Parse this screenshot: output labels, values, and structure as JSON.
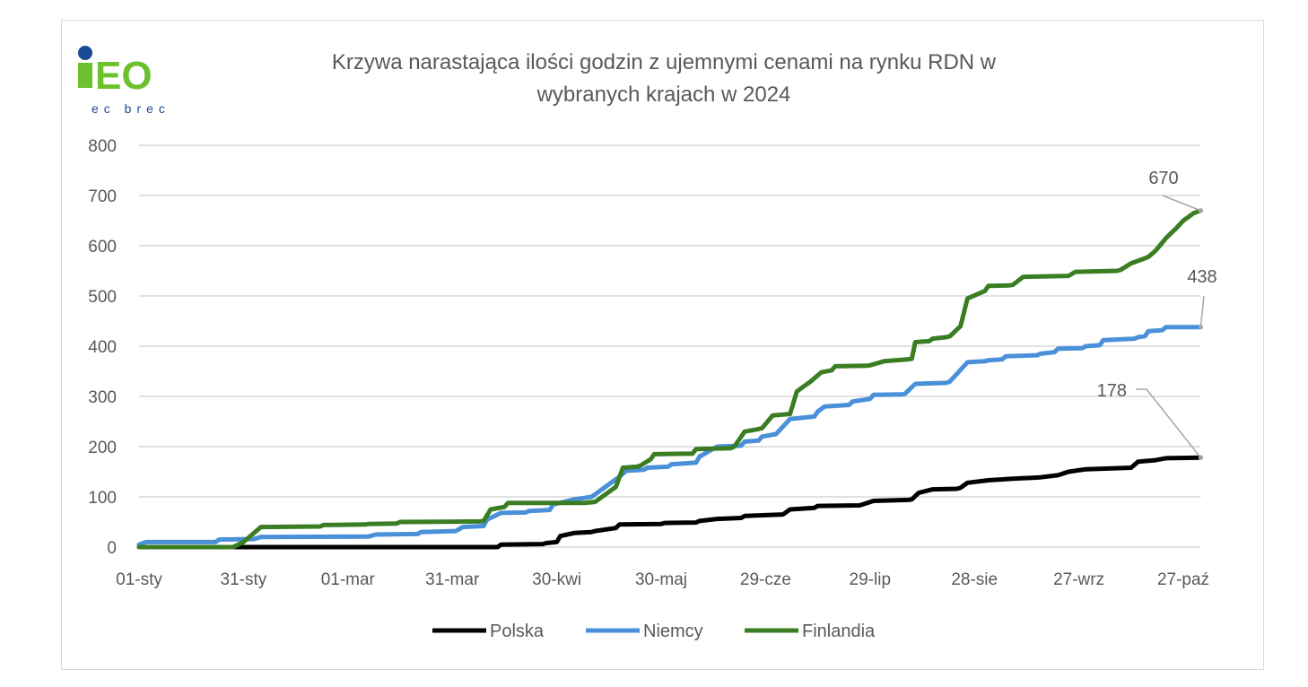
{
  "logo": {
    "main": "iEO",
    "sub": "ec brec"
  },
  "chart_data": {
    "type": "line",
    "title_lines": [
      "Krzywa narastająca ilości godzin z ujemnymi cenami na rynku RDN w",
      "wybranych krajach w 2024"
    ],
    "xlabel": "",
    "ylabel": "",
    "x_unit": "day of year 2024 (0 = 01-sty)",
    "xlim": [
      0,
      305
    ],
    "ylim": [
      0,
      800
    ],
    "y_ticks": [
      0,
      100,
      200,
      300,
      400,
      500,
      600,
      700,
      800
    ],
    "x_ticks": [
      {
        "day": 0,
        "label": "01-sty"
      },
      {
        "day": 30,
        "label": "31-sty"
      },
      {
        "day": 60,
        "label": "01-mar"
      },
      {
        "day": 90,
        "label": "31-mar"
      },
      {
        "day": 120,
        "label": "30-kwi"
      },
      {
        "day": 150,
        "label": "30-maj"
      },
      {
        "day": 180,
        "label": "29-cze"
      },
      {
        "day": 210,
        "label": "29-lip"
      },
      {
        "day": 240,
        "label": "28-sie"
      },
      {
        "day": 270,
        "label": "27-wrz"
      },
      {
        "day": 300,
        "label": "27-paź"
      }
    ],
    "grid": "horizontal",
    "legend_position": "bottom",
    "series": [
      {
        "name": "Polska",
        "color": "#000000",
        "end_label": "178",
        "points": [
          [
            0,
            0
          ],
          [
            103,
            0
          ],
          [
            104,
            5
          ],
          [
            116,
            6
          ],
          [
            117,
            8
          ],
          [
            120,
            10
          ],
          [
            121,
            22
          ],
          [
            125,
            28
          ],
          [
            130,
            30
          ],
          [
            131,
            32
          ],
          [
            137,
            38
          ],
          [
            138,
            45
          ],
          [
            150,
            46
          ],
          [
            151,
            48
          ],
          [
            160,
            49
          ],
          [
            161,
            52
          ],
          [
            166,
            56
          ],
          [
            173,
            58
          ],
          [
            174,
            62
          ],
          [
            185,
            65
          ],
          [
            187,
            75
          ],
          [
            194,
            78
          ],
          [
            195,
            82
          ],
          [
            207,
            83
          ],
          [
            211,
            92
          ],
          [
            221,
            94
          ],
          [
            222,
            95
          ],
          [
            224,
            108
          ],
          [
            228,
            115
          ],
          [
            235,
            116
          ],
          [
            236,
            118
          ],
          [
            238,
            128
          ],
          [
            244,
            133
          ],
          [
            251,
            136
          ],
          [
            259,
            139
          ],
          [
            264,
            143
          ],
          [
            267,
            150
          ],
          [
            272,
            155
          ],
          [
            285,
            158
          ],
          [
            287,
            170
          ],
          [
            292,
            173
          ],
          [
            295,
            177
          ],
          [
            305,
            178
          ]
        ]
      },
      {
        "name": "Niemcy",
        "color": "#4a90d9",
        "end_label": "438",
        "points": [
          [
            0,
            5
          ],
          [
            2,
            10
          ],
          [
            22,
            10
          ],
          [
            23,
            15
          ],
          [
            33,
            16
          ],
          [
            35,
            20
          ],
          [
            66,
            21
          ],
          [
            68,
            25
          ],
          [
            80,
            26
          ],
          [
            81,
            30
          ],
          [
            91,
            32
          ],
          [
            93,
            40
          ],
          [
            99,
            42
          ],
          [
            100,
            55
          ],
          [
            104,
            68
          ],
          [
            111,
            69
          ],
          [
            112,
            72
          ],
          [
            118,
            74
          ],
          [
            119,
            85
          ],
          [
            125,
            95
          ],
          [
            130,
            100
          ],
          [
            134,
            120
          ],
          [
            138,
            140
          ],
          [
            140,
            152
          ],
          [
            145,
            154
          ],
          [
            146,
            158
          ],
          [
            152,
            160
          ],
          [
            153,
            165
          ],
          [
            160,
            168
          ],
          [
            161,
            180
          ],
          [
            166,
            200
          ],
          [
            173,
            202
          ],
          [
            174,
            210
          ],
          [
            178,
            212
          ],
          [
            179,
            220
          ],
          [
            183,
            225
          ],
          [
            187,
            255
          ],
          [
            194,
            260
          ],
          [
            195,
            270
          ],
          [
            197,
            280
          ],
          [
            204,
            283
          ],
          [
            205,
            290
          ],
          [
            210,
            295
          ],
          [
            211,
            303
          ],
          [
            219,
            304
          ],
          [
            220,
            305
          ],
          [
            223,
            325
          ],
          [
            232,
            327
          ],
          [
            233,
            330
          ],
          [
            238,
            368
          ],
          [
            243,
            370
          ],
          [
            244,
            372
          ],
          [
            248,
            374
          ],
          [
            249,
            380
          ],
          [
            258,
            382
          ],
          [
            259,
            385
          ],
          [
            263,
            388
          ],
          [
            264,
            395
          ],
          [
            271,
            396
          ],
          [
            272,
            400
          ],
          [
            276,
            402
          ],
          [
            277,
            412
          ],
          [
            286,
            415
          ],
          [
            287,
            418
          ],
          [
            289,
            420
          ],
          [
            290,
            430
          ],
          [
            294,
            432
          ],
          [
            295,
            438
          ],
          [
            305,
            438
          ]
        ]
      },
      {
        "name": "Finlandia",
        "color": "#3a7d22",
        "end_label": "670",
        "points": [
          [
            0,
            0
          ],
          [
            27,
            0
          ],
          [
            30,
            10
          ],
          [
            35,
            40
          ],
          [
            52,
            41
          ],
          [
            53,
            44
          ],
          [
            65,
            45
          ],
          [
            66,
            46
          ],
          [
            74,
            47
          ],
          [
            75,
            50
          ],
          [
            98,
            51
          ],
          [
            99,
            52
          ],
          [
            101,
            75
          ],
          [
            105,
            80
          ],
          [
            106,
            88
          ],
          [
            128,
            88
          ],
          [
            131,
            90
          ],
          [
            133,
            100
          ],
          [
            137,
            120
          ],
          [
            139,
            158
          ],
          [
            143,
            160
          ],
          [
            144,
            162
          ],
          [
            147,
            175
          ],
          [
            148,
            185
          ],
          [
            159,
            186
          ],
          [
            160,
            195
          ],
          [
            170,
            197
          ],
          [
            171,
            200
          ],
          [
            174,
            230
          ],
          [
            178,
            235
          ],
          [
            179,
            237
          ],
          [
            182,
            262
          ],
          [
            187,
            265
          ],
          [
            189,
            310
          ],
          [
            193,
            330
          ],
          [
            196,
            348
          ],
          [
            199,
            352
          ],
          [
            200,
            360
          ],
          [
            209,
            361
          ],
          [
            210,
            362
          ],
          [
            214,
            370
          ],
          [
            221,
            374
          ],
          [
            222,
            375
          ],
          [
            223,
            408
          ],
          [
            227,
            410
          ],
          [
            228,
            415
          ],
          [
            232,
            418
          ],
          [
            233,
            420
          ],
          [
            236,
            440
          ],
          [
            238,
            495
          ],
          [
            243,
            510
          ],
          [
            244,
            520
          ],
          [
            250,
            521
          ],
          [
            251,
            522
          ],
          [
            254,
            538
          ],
          [
            267,
            540
          ],
          [
            269,
            548
          ],
          [
            281,
            550
          ],
          [
            282,
            552
          ],
          [
            285,
            565
          ],
          [
            289,
            575
          ],
          [
            290,
            578
          ],
          [
            292,
            590
          ],
          [
            295,
            615
          ],
          [
            298,
            635
          ],
          [
            300,
            650
          ],
          [
            303,
            665
          ],
          [
            305,
            670
          ]
        ]
      }
    ]
  }
}
